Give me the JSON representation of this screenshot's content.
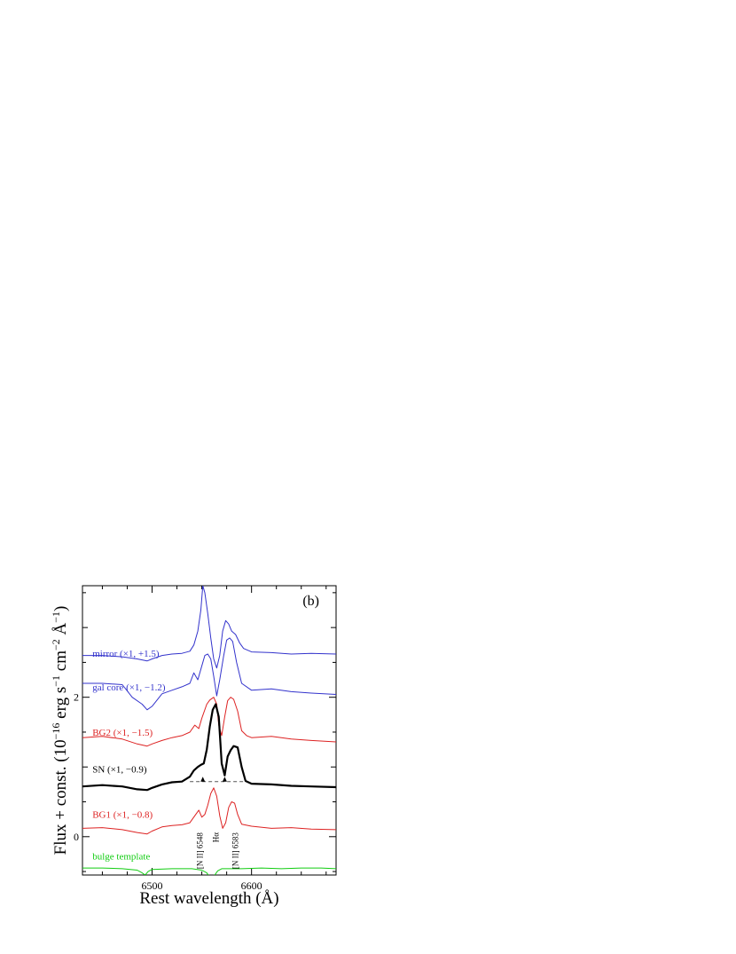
{
  "chart_data": {
    "type": "line",
    "panel_label": "(b)",
    "xlabel": "Rest wavelength (Å)",
    "ylabel_parts": {
      "main": "Flux + const. (10",
      "exp1": "−16",
      "mid1": " erg s",
      "exp2": "−1",
      "mid2": " cm",
      "exp3": "−2",
      "angstrom": " Å",
      "exp4": "−1",
      "close": ")"
    },
    "xlim": [
      6430,
      6685
    ],
    "ylim": [
      -0.55,
      3.6
    ],
    "x_ticks": [
      6500,
      6600
    ],
    "x_tick_labels": [
      "6500",
      "6600"
    ],
    "y_ticks": [
      0,
      2
    ],
    "y_tick_labels": [
      "0",
      "2"
    ],
    "colors": {
      "blue": "#3333cc",
      "red": "#dd2222",
      "black": "#000000",
      "green": "#11cc11"
    },
    "series": [
      {
        "name": "mirror (×1, +1.5)",
        "color": "#3333cc",
        "label_position": {
          "x": 6440,
          "y": 2.58
        },
        "x": [
          6430,
          6450,
          6470,
          6485,
          6495,
          6500,
          6510,
          6520,
          6530,
          6538,
          6542,
          6546,
          6549,
          6551,
          6553,
          6556,
          6559,
          6562,
          6565,
          6568,
          6571,
          6574,
          6577,
          6580,
          6584,
          6588,
          6592,
          6600,
          6620,
          6640,
          6660,
          6685
        ],
        "y": [
          2.6,
          2.6,
          2.58,
          2.55,
          2.52,
          2.55,
          2.6,
          2.62,
          2.63,
          2.66,
          2.75,
          2.95,
          3.25,
          3.6,
          3.5,
          3.2,
          2.85,
          2.55,
          2.42,
          2.6,
          2.95,
          3.1,
          3.05,
          2.95,
          2.9,
          2.78,
          2.7,
          2.65,
          2.64,
          2.62,
          2.63,
          2.62
        ]
      },
      {
        "name": "gal core (×1, −1.2)",
        "color": "#3333cc",
        "label_position": {
          "x": 6440,
          "y": 2.1
        },
        "x": [
          6430,
          6450,
          6470,
          6480,
          6490,
          6495,
          6500,
          6510,
          6520,
          6530,
          6538,
          6542,
          6546,
          6550,
          6553,
          6556,
          6559,
          6562,
          6565,
          6568,
          6572,
          6575,
          6578,
          6581,
          6585,
          6590,
          6600,
          6620,
          6640,
          6660,
          6685
        ],
        "y": [
          2.2,
          2.2,
          2.18,
          2.0,
          1.9,
          1.82,
          1.87,
          2.05,
          2.1,
          2.15,
          2.2,
          2.35,
          2.25,
          2.45,
          2.6,
          2.62,
          2.55,
          2.3,
          2.02,
          2.25,
          2.6,
          2.82,
          2.85,
          2.8,
          2.5,
          2.2,
          2.1,
          2.12,
          2.08,
          2.06,
          2.04
        ]
      },
      {
        "name": "BG2 (×1, −1.5)",
        "color": "#dd2222",
        "label_position": {
          "x": 6440,
          "y": 1.45
        },
        "x": [
          6430,
          6450,
          6470,
          6485,
          6495,
          6500,
          6510,
          6520,
          6530,
          6538,
          6543,
          6547,
          6550,
          6555,
          6558,
          6562,
          6565,
          6567,
          6570,
          6573,
          6576,
          6579,
          6582,
          6586,
          6590,
          6595,
          6600,
          6620,
          6640,
          6660,
          6685
        ],
        "y": [
          1.42,
          1.44,
          1.4,
          1.33,
          1.3,
          1.33,
          1.38,
          1.42,
          1.45,
          1.5,
          1.6,
          1.55,
          1.7,
          1.9,
          1.96,
          2.0,
          1.9,
          1.6,
          1.45,
          1.72,
          1.95,
          2.0,
          1.97,
          1.8,
          1.52,
          1.45,
          1.42,
          1.44,
          1.4,
          1.38,
          1.36
        ]
      },
      {
        "name": "SN (×1, −0.9)",
        "color": "#000000",
        "label_position": {
          "x": 6440,
          "y": 0.92
        },
        "x": [
          6430,
          6450,
          6470,
          6485,
          6495,
          6500,
          6510,
          6520,
          6530,
          6538,
          6542,
          6546,
          6549,
          6552,
          6555,
          6558,
          6561,
          6564,
          6567,
          6570,
          6573,
          6576,
          6579,
          6582,
          6586,
          6590,
          6594,
          6600,
          6620,
          6640,
          6660,
          6685
        ],
        "y": [
          0.72,
          0.74,
          0.72,
          0.68,
          0.67,
          0.7,
          0.75,
          0.78,
          0.79,
          0.86,
          0.95,
          1.0,
          1.03,
          1.05,
          1.25,
          1.58,
          1.82,
          1.9,
          1.72,
          1.05,
          0.88,
          1.15,
          1.24,
          1.3,
          1.28,
          1.0,
          0.8,
          0.76,
          0.75,
          0.73,
          0.72,
          0.71
        ]
      },
      {
        "name": "BG1 (×1, −0.8)",
        "color": "#dd2222",
        "label_position": {
          "x": 6440,
          "y": 0.27
        },
        "x": [
          6430,
          6450,
          6470,
          6485,
          6495,
          6500,
          6510,
          6520,
          6530,
          6538,
          6543,
          6547,
          6550,
          6553,
          6556,
          6559,
          6562,
          6565,
          6568,
          6571,
          6574,
          6577,
          6580,
          6583,
          6586,
          6590,
          6600,
          6620,
          6640,
          6660,
          6685
        ],
        "y": [
          0.12,
          0.13,
          0.1,
          0.06,
          0.04,
          0.08,
          0.14,
          0.16,
          0.17,
          0.2,
          0.3,
          0.38,
          0.28,
          0.32,
          0.45,
          0.62,
          0.7,
          0.58,
          0.3,
          0.12,
          0.2,
          0.42,
          0.5,
          0.48,
          0.32,
          0.18,
          0.15,
          0.12,
          0.13,
          0.11,
          0.1
        ]
      },
      {
        "name": "bulge template",
        "color": "#11cc11",
        "label_position": {
          "x": 6440,
          "y": -0.33
        },
        "x": [
          6430,
          6450,
          6470,
          6485,
          6490,
          6493,
          6496,
          6500,
          6520,
          6540,
          6550,
          6555,
          6558,
          6560,
          6563,
          6566,
          6570,
          6590,
          6610,
          6630,
          6650,
          6670,
          6685
        ],
        "y": [
          -0.45,
          -0.45,
          -0.46,
          -0.48,
          -0.52,
          -0.55,
          -0.5,
          -0.47,
          -0.46,
          -0.46,
          -0.48,
          -0.52,
          -0.58,
          -0.6,
          -0.55,
          -0.49,
          -0.46,
          -0.46,
          -0.45,
          -0.46,
          -0.45,
          -0.45,
          -0.46
        ]
      }
    ],
    "annotations": [
      {
        "text": "[N II] 6548",
        "x": 6548,
        "y": 0.06
      },
      {
        "text": "Hα",
        "x": 6564,
        "y": 0.06
      },
      {
        "text": "[N II] 6583",
        "x": 6584,
        "y": 0.06
      }
    ],
    "continuum_dashed_line": {
      "x": [
        6538,
        6594
      ],
      "y": [
        0.79,
        0.79
      ]
    },
    "arrows": [
      {
        "x": 6551,
        "y_tip": 0.86,
        "y_base": 0.79
      },
      {
        "x": 6573,
        "y_tip": 0.86,
        "y_base": 0.79
      }
    ]
  }
}
